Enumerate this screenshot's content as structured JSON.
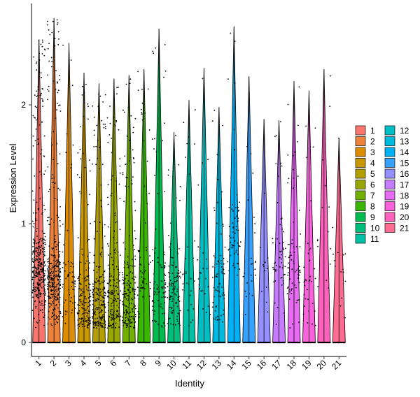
{
  "chart_data": {
    "type": "violin",
    "xlabel": "Identity",
    "ylabel": "Expression Level",
    "categories": [
      "1",
      "2",
      "3",
      "4",
      "5",
      "6",
      "7",
      "8",
      "9",
      "10",
      "11",
      "12",
      "13",
      "14",
      "15",
      "16",
      "17",
      "18",
      "19",
      "20",
      "21"
    ],
    "yticks": [
      0,
      1,
      2
    ],
    "ylim": [
      -0.05,
      2.85
    ],
    "max_values": [
      2.55,
      2.73,
      2.52,
      2.27,
      2.18,
      2.22,
      2.25,
      2.3,
      2.64,
      1.77,
      2.04,
      2.31,
      1.98,
      2.66,
      2.24,
      1.88,
      1.87,
      2.2,
      2.12,
      2.3,
      1.72
    ],
    "point_density": [
      380,
      320,
      60,
      160,
      210,
      170,
      190,
      60,
      90,
      100,
      30,
      25,
      70,
      60,
      25,
      12,
      55,
      70,
      35,
      15,
      15
    ],
    "point_center": [
      0.6,
      0.5,
      0.5,
      0.3,
      0.3,
      0.35,
      0.35,
      0.5,
      0.45,
      0.45,
      0.5,
      0.6,
      0.5,
      0.9,
      0.6,
      0.5,
      0.6,
      0.6,
      0.5,
      0.8,
      0.6
    ],
    "legend": {
      "column1": [
        "1",
        "2",
        "3",
        "4",
        "5",
        "6",
        "7",
        "8",
        "9",
        "10",
        "11"
      ],
      "column2": [
        "12",
        "13",
        "14",
        "15",
        "16",
        "17",
        "18",
        "19",
        "20",
        "21"
      ]
    },
    "colors": [
      "#F8766D",
      "#EC823C",
      "#DC8D00",
      "#C99800",
      "#B3A000",
      "#98A800",
      "#72B000",
      "#39B600",
      "#00BB4E",
      "#00BF7D",
      "#00C1A3",
      "#00BFC4",
      "#00BAE0",
      "#00B1F6",
      "#35A2FF",
      "#9590FF",
      "#C77CFF",
      "#E76BF3",
      "#FA62DB",
      "#FF62BC",
      "#FF6C91"
    ]
  }
}
